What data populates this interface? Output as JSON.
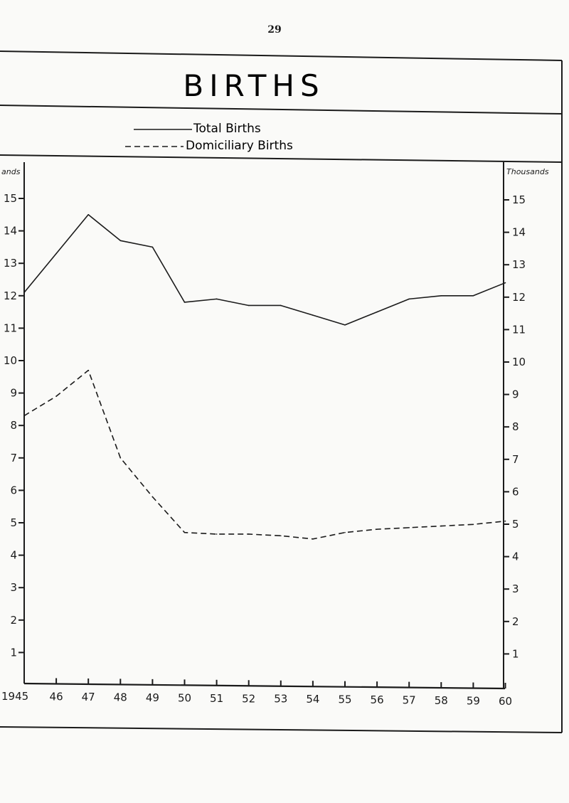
{
  "page_number": "29",
  "chart_data": {
    "type": "line",
    "title": "BIRTHS",
    "left_unit_label": "ands",
    "right_unit_label": "Thousands",
    "x": [
      "1945",
      "46",
      "47",
      "48",
      "49",
      "50",
      "51",
      "52",
      "53",
      "54",
      "55",
      "56",
      "57",
      "58",
      "59",
      "60"
    ],
    "y_ticks_left": [
      "1",
      "2",
      "3",
      "4",
      "5",
      "6",
      "7",
      "8",
      "9",
      "10",
      "11",
      "12",
      "13",
      "14",
      "15"
    ],
    "y_ticks_right": [
      "1",
      "2",
      "3",
      "4",
      "5",
      "6",
      "7",
      "8",
      "9",
      "10",
      "11",
      "12",
      "13",
      "14",
      "15"
    ],
    "ylim": [
      0,
      15.5
    ],
    "legend": {
      "placement": "top",
      "entries": [
        "Total Births",
        "Domiciliary Births"
      ]
    },
    "series": [
      {
        "name": "Total Births",
        "style": "solid",
        "values": [
          12.1,
          13.3,
          14.5,
          13.7,
          13.5,
          11.8,
          11.9,
          11.7,
          11.7,
          11.4,
          11.1,
          11.5,
          11.9,
          12.0,
          12.0,
          12.4
        ]
      },
      {
        "name": "Domiciliary Births",
        "style": "dashed",
        "values": [
          8.3,
          8.9,
          9.7,
          7.0,
          5.8,
          4.7,
          4.65,
          4.65,
          4.6,
          4.5,
          4.7,
          4.8,
          4.85,
          4.9,
          4.95,
          5.05
        ]
      }
    ]
  }
}
